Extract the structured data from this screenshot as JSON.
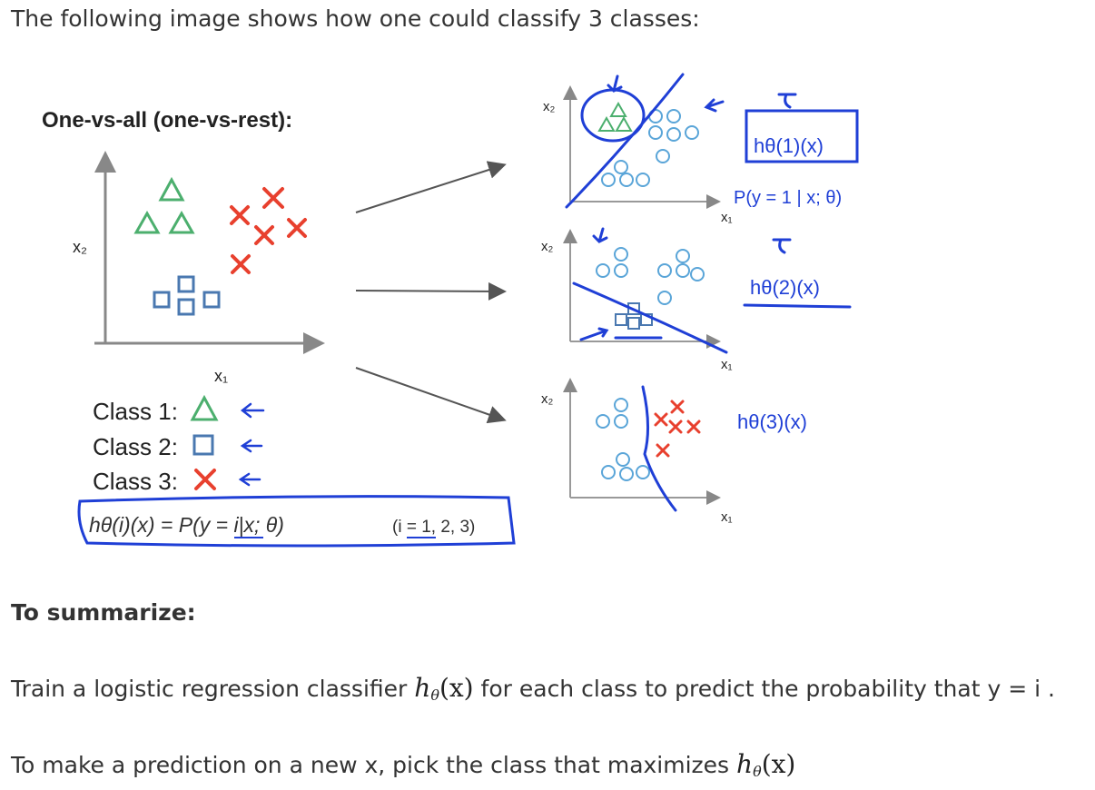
{
  "intro_text": "The following image shows how one could classify 3 classes:",
  "figure": {
    "title": "One-vs-all (one-vs-rest):",
    "main_axes": {
      "x_label": "x₁",
      "y_label": "x₂"
    },
    "classes": [
      {
        "label": "Class 1:",
        "shape": "triangle",
        "color": "#4caf6e"
      },
      {
        "label": "Class 2:",
        "shape": "square",
        "color": "#4a78b0"
      },
      {
        "label": "Class 3:",
        "shape": "cross",
        "color": "#e8402e"
      }
    ],
    "formula": {
      "lhs": "hθ(i)(x) = P(y = i|x; θ)",
      "rhs": "(i = 1, 2, 3)"
    },
    "panels": [
      {
        "x_label": "x₁",
        "y_label": "x₂",
        "hypothesis": "hθ(1)(x)",
        "note": "P(y = 1 | x; θ)"
      },
      {
        "x_label": "x₁",
        "y_label": "x₂",
        "hypothesis": "hθ(2)(x)"
      },
      {
        "x_label": "x₁",
        "y_label": "x₂",
        "hypothesis": "hθ(3)(x)"
      }
    ],
    "colors": {
      "ink": "#1f3fd6",
      "triangle": "#4caf6e",
      "square": "#4a78b0",
      "cross": "#e8402e",
      "circle": "#5aa5d8"
    }
  },
  "summary_heading": "To summarize:",
  "para1": {
    "before": "Train a logistic regression classifier ",
    "math_h": "h",
    "math_sub": "θ",
    "math_arg": "(x)",
    "after": " for each class to predict the probability that  y = i ."
  },
  "para2": {
    "before": "To make a prediction on a new x, pick the class that maximizes ",
    "math_h": "h",
    "math_sub": "θ",
    "math_arg": "(x)"
  }
}
